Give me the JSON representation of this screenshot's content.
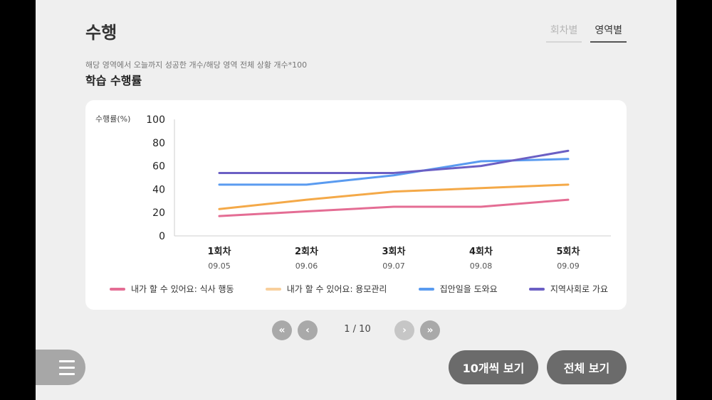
{
  "header": {
    "title": "수행",
    "tabs": [
      {
        "label": "회차별",
        "active": false
      },
      {
        "label": "영역별",
        "active": true
      }
    ]
  },
  "formula_text": "해당 영역에서 오늘까지 성공한 개수/해당 영역 전체 상황 개수*100",
  "section_title": "학습 수행률",
  "chart_data": {
    "type": "line",
    "ylabel": "수행률(%)",
    "ylim": [
      0,
      100
    ],
    "yticks": [
      0,
      20,
      40,
      60,
      80,
      100
    ],
    "grid": false,
    "legend_position": "bottom",
    "categories": [
      "1회차",
      "2회차",
      "3회차",
      "4회차",
      "5회차"
    ],
    "dates": [
      "09.05",
      "09.06",
      "09.07",
      "09.08",
      "09.09"
    ],
    "series": [
      {
        "name": "내가 할 수 있어요: 식사 행동",
        "color": "#e46d94",
        "values": [
          17,
          21,
          25,
          25,
          31
        ]
      },
      {
        "name": "내가 할 수 있어요: 용모관리",
        "color": "#f4a948",
        "values": [
          23,
          31,
          38,
          41,
          44
        ]
      },
      {
        "name": "집안일을 도와요",
        "color": "#5a9bf0",
        "values": [
          44,
          44,
          52,
          64,
          66
        ]
      },
      {
        "name": "지역사회로 가요",
        "color": "#6b5fc4",
        "values": [
          54,
          54,
          54,
          60,
          73
        ]
      }
    ],
    "legend_colors": [
      "#e46d94",
      "#f8cf9c",
      "#5a9bf0",
      "#6b5fc4"
    ]
  },
  "pagination": {
    "first_icon": "double-chevron-left-icon",
    "prev_icon": "chevron-left-icon",
    "next_icon": "chevron-right-icon",
    "last_icon": "double-chevron-right-icon",
    "current": 1,
    "total": 10,
    "text": "1 / 10"
  },
  "footer": {
    "menu_icon": "hamburger-menu-icon",
    "show10_label": "10개씩 보기",
    "show_all_label": "전체 보기"
  }
}
